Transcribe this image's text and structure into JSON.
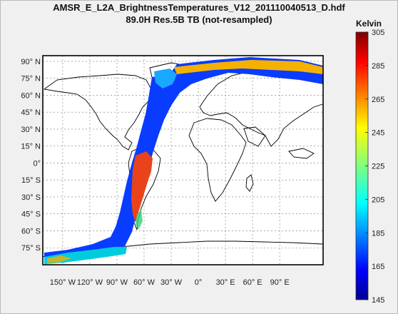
{
  "title_line1": "AMSR_E_L2A_BrightnessTemperatures_V12_201110040513_D.hdf",
  "title_line2": "89.0H Res.5B TB (not-resampled)",
  "colorbar": {
    "title": "Kelvin",
    "ticks": [
      "305",
      "285",
      "265",
      "245",
      "225",
      "205",
      "185",
      "165",
      "145"
    ],
    "min": 145,
    "max": 305,
    "colormap": "jet"
  },
  "lat_labels": [
    {
      "deg": 90,
      "text": "90° N"
    },
    {
      "deg": 75,
      "text": "75° N"
    },
    {
      "deg": 60,
      "text": "60° N"
    },
    {
      "deg": 45,
      "text": "45° N"
    },
    {
      "deg": 30,
      "text": "30° N"
    },
    {
      "deg": 15,
      "text": "15° N"
    },
    {
      "deg": 0,
      "text": "0°"
    },
    {
      "deg": -15,
      "text": "15° S"
    },
    {
      "deg": -30,
      "text": "30° S"
    },
    {
      "deg": -45,
      "text": "45° S"
    },
    {
      "deg": -60,
      "text": "60° S"
    },
    {
      "deg": -75,
      "text": "75° S"
    }
  ],
  "lon_labels": [
    {
      "deg": -150,
      "text": "150° W"
    },
    {
      "deg": -120,
      "text": "120° W"
    },
    {
      "deg": -90,
      "text": "90° W"
    },
    {
      "deg": -60,
      "text": "60° W"
    },
    {
      "deg": -30,
      "text": "30° W"
    },
    {
      "deg": 0,
      "text": "0°"
    },
    {
      "deg": 30,
      "text": "30° E"
    },
    {
      "deg": 60,
      "text": "60° E"
    },
    {
      "deg": 90,
      "text": "90° E"
    }
  ],
  "colors": {
    "swath_main": "#0a3cff",
    "swath_warm_land": "#e8431a",
    "swath_cold": "#00ccdd",
    "polar_warm": "#f5b000",
    "background": "#ffffff"
  }
}
